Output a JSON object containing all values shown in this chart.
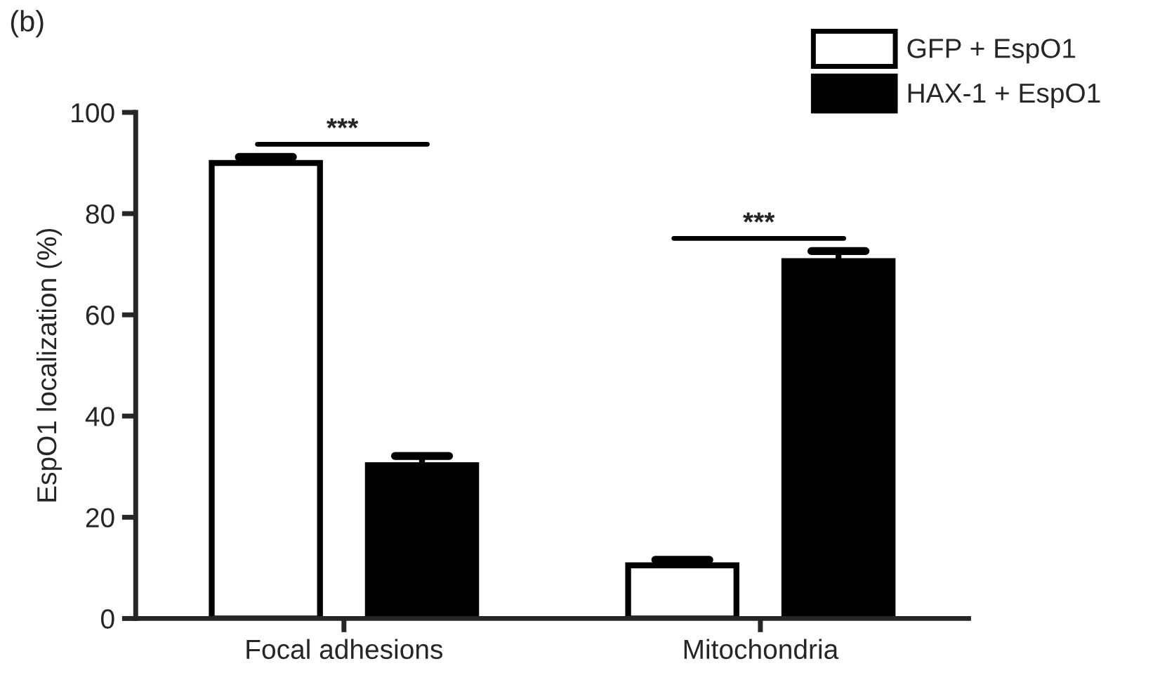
{
  "chart_data": {
    "type": "bar",
    "ylabel": "EspO1 localization (%)",
    "categories": [
      "Focal adhesions",
      "Mitochondria"
    ],
    "series": [
      {
        "name": "GFP + EspO1",
        "color": "#ffffff",
        "values": [
          90,
          10.5
        ],
        "errors": [
          [
            90,
            91.2
          ],
          [
            10.5,
            11.6
          ]
        ]
      },
      {
        "name": "HAX-1 + EspO1",
        "color": "#000000",
        "values": [
          30.3,
          70.6
        ],
        "errors": [
          [
            30.3,
            32.1
          ],
          [
            70.6,
            72.6
          ]
        ]
      }
    ],
    "ylim": [
      0,
      100
    ],
    "yticks": [
      0,
      20,
      40,
      60,
      80,
      100
    ],
    "grid": false,
    "legend": "top right",
    "annotations": [
      "(b)",
      "***",
      "***"
    ]
  }
}
